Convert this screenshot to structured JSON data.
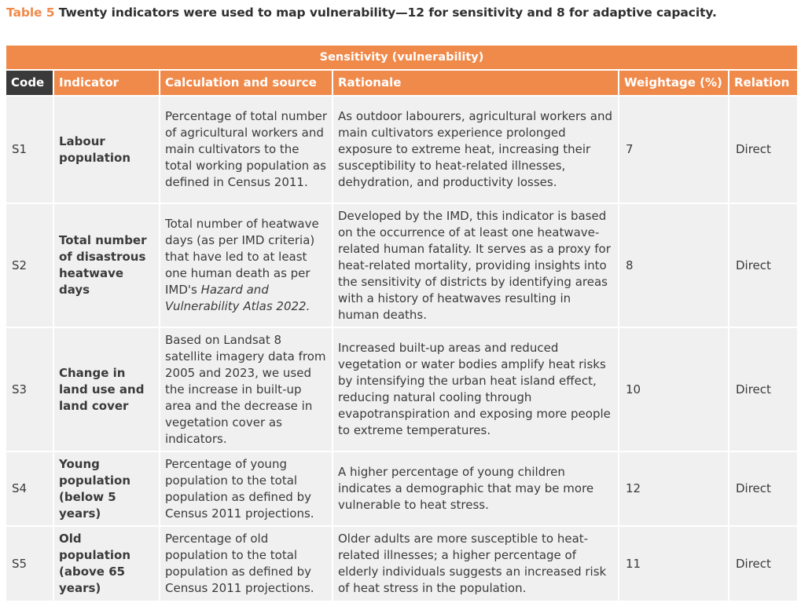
{
  "caption": {
    "label": "Table 5",
    "text": " Twenty indicators were used to map vulnerability—12 for sensitivity and 8 for adaptive capacity."
  },
  "section_header": "Sensitivity (vulnerability)",
  "columns": [
    "Code",
    "Indicator",
    "Calculation and source",
    "Rationale",
    "Weightage (%)",
    "Relation"
  ],
  "rows": [
    {
      "code": "S1",
      "indicator": "Labour population",
      "calculation": "Percentage of total number of agricultural workers and main cultivators to the total working population as defined in Census 2011.",
      "rationale": "As outdoor labourers, agricultural workers and main cultivators experience prolonged exposure to extreme heat, increasing their susceptibility to heat-related illnesses, dehydration, and productivity losses.",
      "weightage": "7",
      "relation": "Direct"
    },
    {
      "code": "S2",
      "indicator": "Total number of disastrous heatwave days",
      "calculation_pre": "Total number of heatwave days (as per IMD criteria) that have led to at least one human death as per IMD's ",
      "calculation_italic": "Hazard and Vulnerability Atlas 2022.",
      "rationale": "Developed by the IMD, this indicator is based on the occurrence of at least one heatwave-related human fatality. It serves as a proxy for heat-related mortality, providing insights into the sensitivity of districts by identifying areas with a history of heatwaves resulting in human deaths.",
      "weightage": "8",
      "relation": "Direct"
    },
    {
      "code": "S3",
      "indicator": "Change in land use and land cover",
      "calculation": "Based on Landsat 8 satellite imagery data from 2005 and 2023, we used the increase in built-up area and the decrease in vegetation cover as indicators.",
      "rationale": "Increased built-up areas and reduced vegetation or water bodies amplify heat risks by intensifying the urban heat island effect, reducing natural cooling through evapotranspiration and exposing more people to extreme temperatures.",
      "weightage": "10",
      "relation": "Direct"
    },
    {
      "code": "S4",
      "indicator": "Young population (below 5 years)",
      "calculation": "Percentage of young population to the total population as defined by Census 2011 projections.",
      "rationale": "A higher percentage of young children indicates a demographic that may be more vulnerable to heat stress.",
      "weightage": "12",
      "relation": "Direct"
    },
    {
      "code": "S5",
      "indicator": "Old population (above 65 years)",
      "calculation": "Percentage of old population to the total population as defined by Census 2011 projections.",
      "rationale": "Older adults are more susceptible to heat-related illnesses; a higher percentage of elderly individuals suggests an increased risk of heat stress in the population.",
      "weightage": "11",
      "relation": "Direct"
    }
  ]
}
